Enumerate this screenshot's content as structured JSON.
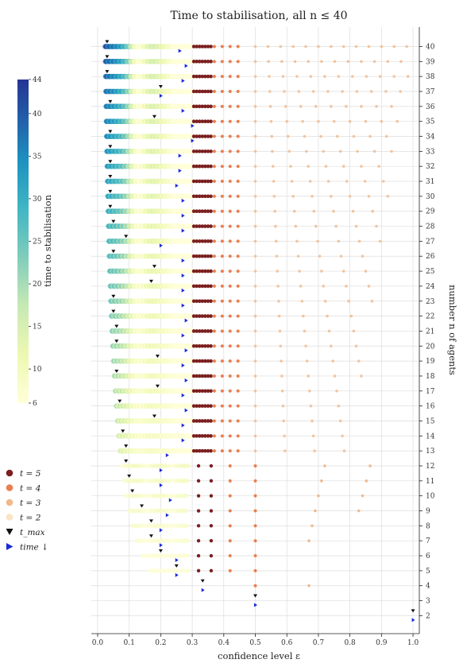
{
  "chart_data": {
    "type": "scatter",
    "title": "Time to stabilisation, all n ≤ 40",
    "xlabel": "confidence level ε",
    "ylabel": "number n of agents",
    "xlim": [
      -0.02,
      1.02
    ],
    "ylim": [
      0.8,
      41.3
    ],
    "x_ticks": [
      "0.0",
      "0.1",
      "0.2",
      "0.3",
      "0.4",
      "0.5",
      "0.6",
      "0.7",
      "0.8",
      "0.9",
      "1.0"
    ],
    "y_ticks": [
      "2",
      "3",
      "4",
      "5",
      "6",
      "7",
      "8",
      "9",
      "10",
      "11",
      "12",
      "13",
      "14",
      "15",
      "16",
      "17",
      "18",
      "19",
      "20",
      "21",
      "22",
      "23",
      "24",
      "25",
      "26",
      "27",
      "28",
      "29",
      "30",
      "31",
      "32",
      "33",
      "34",
      "35",
      "36",
      "37",
      "38",
      "39",
      "40"
    ],
    "grid": true,
    "colorbar": {
      "label": "time to stabilisation",
      "min": 6,
      "max": 44,
      "ticks": [
        "6",
        "10",
        "15",
        "20",
        "25",
        "30",
        "35",
        "40",
        "44"
      ]
    },
    "legend": {
      "position": "left",
      "entries": [
        {
          "label": "t = 5",
          "color": "#7b1f1f",
          "marker": "circle"
        },
        {
          "label": "t = 4",
          "color": "#e8804e",
          "marker": "circle"
        },
        {
          "label": "t = 3",
          "color": "#f0b98c",
          "marker": "circle"
        },
        {
          "label": "t = 2",
          "color": "#fbe3c4",
          "marker": "circle"
        },
        {
          "label": "t_max",
          "color": "#111111",
          "marker": "triangle-down"
        },
        {
          "label": "time ↓",
          "color": "#1a2bd6",
          "marker": "triangle-right"
        }
      ]
    },
    "series": [
      {
        "n": 2,
        "t_max_eps": 1.0,
        "time_drop_eps": 1.0
      },
      {
        "n": 3,
        "t_max_eps": 0.5,
        "time_drop_eps": 0.5
      },
      {
        "n": 4,
        "t_max_eps": 0.333,
        "time_drop_eps": 0.333
      },
      {
        "n": 5,
        "t_max_eps": 0.25,
        "time_drop_eps": 0.25
      },
      {
        "n": 6,
        "t_max_eps": 0.2,
        "time_drop_eps": 0.25
      },
      {
        "n": 7,
        "t_max_eps": 0.17,
        "time_drop_eps": 0.2
      },
      {
        "n": 8,
        "t_max_eps": 0.17,
        "time_drop_eps": 0.2
      },
      {
        "n": 9,
        "t_max_eps": 0.14,
        "time_drop_eps": 0.22
      },
      {
        "n": 10,
        "t_max_eps": 0.11,
        "time_drop_eps": 0.23
      },
      {
        "n": 11,
        "t_max_eps": 0.1,
        "time_drop_eps": 0.2
      },
      {
        "n": 12,
        "t_max_eps": 0.09,
        "time_drop_eps": 0.2
      },
      {
        "n": 13,
        "t_max_eps": 0.09,
        "time_drop_eps": 0.22
      },
      {
        "n": 14,
        "t_max_eps": 0.08,
        "time_drop_eps": 0.27
      },
      {
        "n": 15,
        "t_max_eps": 0.18,
        "time_drop_eps": 0.27
      },
      {
        "n": 16,
        "t_max_eps": 0.07,
        "time_drop_eps": 0.28
      },
      {
        "n": 17,
        "t_max_eps": 0.19,
        "time_drop_eps": 0.27
      },
      {
        "n": 18,
        "t_max_eps": 0.06,
        "time_drop_eps": 0.28
      },
      {
        "n": 19,
        "t_max_eps": 0.19,
        "time_drop_eps": 0.27
      },
      {
        "n": 20,
        "t_max_eps": 0.06,
        "time_drop_eps": 0.28
      },
      {
        "n": 21,
        "t_max_eps": 0.06,
        "time_drop_eps": 0.27
      },
      {
        "n": 22,
        "t_max_eps": 0.05,
        "time_drop_eps": 0.28
      },
      {
        "n": 23,
        "t_max_eps": 0.05,
        "time_drop_eps": 0.27
      },
      {
        "n": 24,
        "t_max_eps": 0.17,
        "time_drop_eps": 0.27
      },
      {
        "n": 25,
        "t_max_eps": 0.18,
        "time_drop_eps": 0.27
      },
      {
        "n": 26,
        "t_max_eps": 0.05,
        "time_drop_eps": 0.27
      },
      {
        "n": 27,
        "t_max_eps": 0.09,
        "time_drop_eps": 0.2
      },
      {
        "n": 28,
        "t_max_eps": 0.05,
        "time_drop_eps": 0.27
      },
      {
        "n": 29,
        "t_max_eps": 0.04,
        "time_drop_eps": 0.27
      },
      {
        "n": 30,
        "t_max_eps": 0.04,
        "time_drop_eps": 0.27
      },
      {
        "n": 31,
        "t_max_eps": 0.04,
        "time_drop_eps": 0.25
      },
      {
        "n": 32,
        "t_max_eps": 0.04,
        "time_drop_eps": 0.26
      },
      {
        "n": 33,
        "t_max_eps": 0.04,
        "time_drop_eps": 0.26
      },
      {
        "n": 34,
        "t_max_eps": 0.04,
        "time_drop_eps": 0.3
      },
      {
        "n": 35,
        "t_max_eps": 0.18,
        "time_drop_eps": 0.3
      },
      {
        "n": 36,
        "t_max_eps": 0.04,
        "time_drop_eps": 0.27
      },
      {
        "n": 37,
        "t_max_eps": 0.2,
        "time_drop_eps": 0.2
      },
      {
        "n": 38,
        "t_max_eps": 0.03,
        "time_drop_eps": 0.27
      },
      {
        "n": 39,
        "t_max_eps": 0.03,
        "time_drop_eps": 0.28
      },
      {
        "n": 40,
        "t_max_eps": 0.03,
        "time_drop_eps": 0.26
      }
    ]
  }
}
